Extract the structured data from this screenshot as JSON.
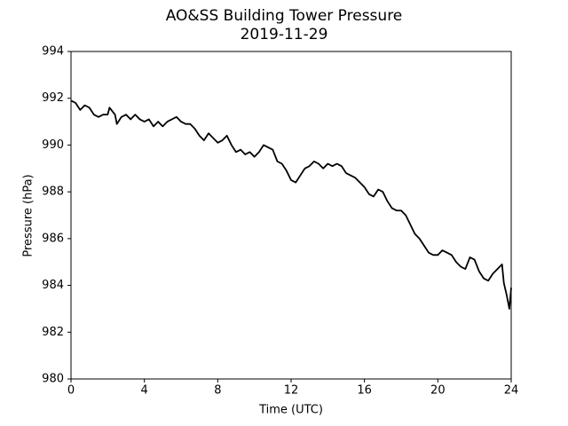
{
  "chart_data": {
    "type": "line",
    "title": "AO&SS Building Tower Pressure",
    "subtitle": "2019-11-29",
    "x_label": "Time (UTC)",
    "y_label": "Pressure (hPa)",
    "x": [
      0,
      0.25,
      0.5,
      0.75,
      1,
      1.25,
      1.5,
      1.75,
      2,
      2.1,
      2.4,
      2.5,
      2.75,
      3,
      3.25,
      3.5,
      3.75,
      4,
      4.25,
      4.5,
      4.75,
      5,
      5.25,
      5.5,
      5.75,
      6,
      6.25,
      6.5,
      6.75,
      7,
      7.25,
      7.5,
      7.75,
      8,
      8.25,
      8.5,
      8.75,
      9,
      9.25,
      9.5,
      9.75,
      10,
      10.25,
      10.5,
      10.75,
      11,
      11.25,
      11.5,
      11.75,
      12,
      12.25,
      12.5,
      12.75,
      13,
      13.25,
      13.5,
      13.75,
      14,
      14.25,
      14.5,
      14.75,
      15,
      15.25,
      15.5,
      15.75,
      16,
      16.25,
      16.5,
      16.75,
      17,
      17.25,
      17.5,
      17.75,
      18,
      18.25,
      18.5,
      18.75,
      19,
      19.25,
      19.5,
      19.75,
      20,
      20.25,
      20.5,
      20.75,
      21,
      21.25,
      21.5,
      21.75,
      22,
      22.25,
      22.5,
      22.75,
      23,
      23.25,
      23.5,
      23.6,
      23.75,
      23.9,
      24
    ],
    "series": [
      {
        "name": "Pressure",
        "color": "#000000",
        "values": [
          991.9,
          991.8,
          991.5,
          991.7,
          991.6,
          991.3,
          991.2,
          991.3,
          991.3,
          991.6,
          991.3,
          990.9,
          991.2,
          991.3,
          991.1,
          991.3,
          991.1,
          991.0,
          991.1,
          990.8,
          991.0,
          990.8,
          991.0,
          991.1,
          991.2,
          991.0,
          990.9,
          990.9,
          990.7,
          990.4,
          990.2,
          990.5,
          990.3,
          990.1,
          990.2,
          990.4,
          990.0,
          989.7,
          989.8,
          989.6,
          989.7,
          989.5,
          989.7,
          990.0,
          989.9,
          989.8,
          989.3,
          989.2,
          988.9,
          988.5,
          988.4,
          988.7,
          989.0,
          989.1,
          989.3,
          989.2,
          989.0,
          989.2,
          989.1,
          989.2,
          989.1,
          988.8,
          988.7,
          988.6,
          988.4,
          988.2,
          987.9,
          987.8,
          988.1,
          988.0,
          987.6,
          987.3,
          987.2,
          987.2,
          987.0,
          986.6,
          986.2,
          986.0,
          985.7,
          985.4,
          985.3,
          985.3,
          985.5,
          985.4,
          985.3,
          985.0,
          984.8,
          984.7,
          985.2,
          985.1,
          984.6,
          984.3,
          984.2,
          984.5,
          984.7,
          984.9,
          984.1,
          983.6,
          983.0,
          983.9
        ]
      }
    ],
    "xlim": [
      0,
      24
    ],
    "xticks": [
      0,
      4,
      8,
      12,
      16,
      20,
      24
    ],
    "ylim": [
      980,
      994
    ],
    "yticks": [
      980,
      982,
      984,
      986,
      988,
      990,
      992,
      994
    ]
  }
}
